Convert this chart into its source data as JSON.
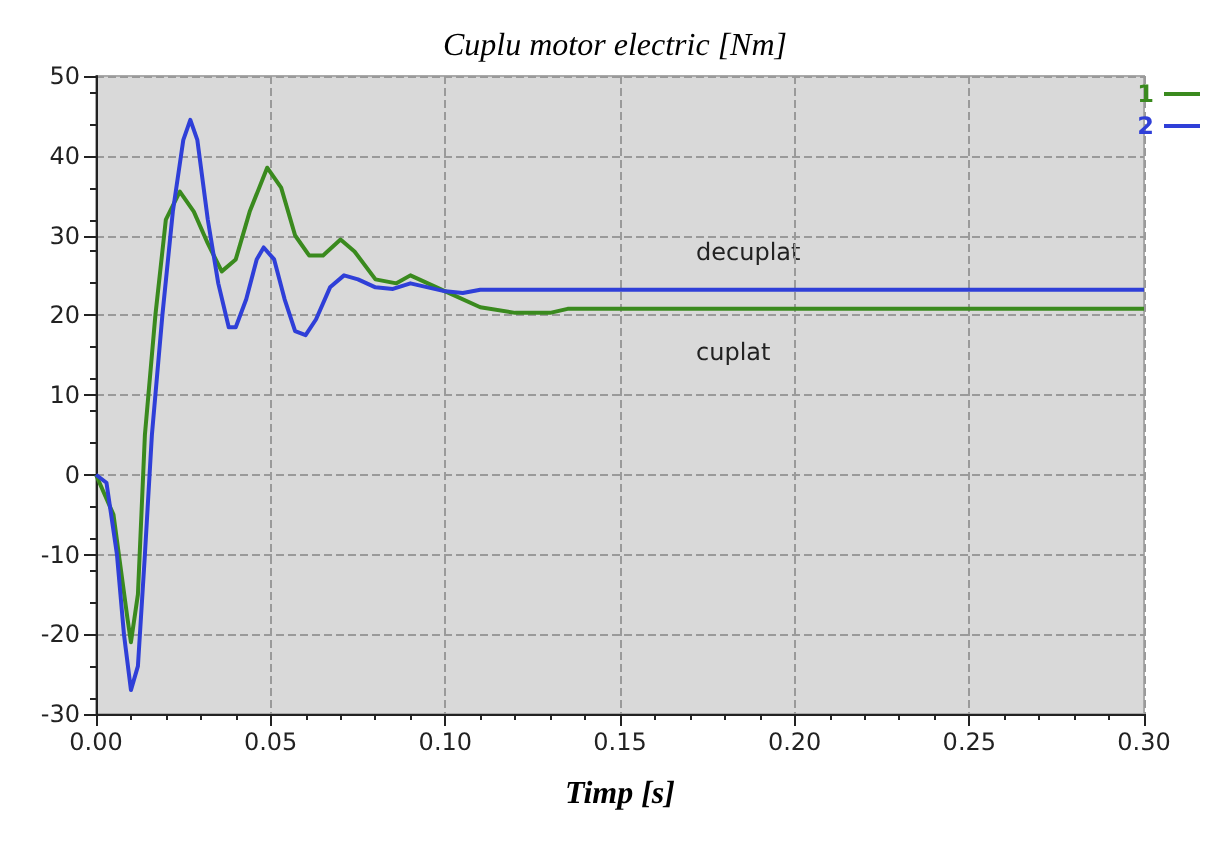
{
  "chart_data": {
    "type": "line",
    "title": "Cuplu motor electric [Nm]",
    "xlabel": "Timp [s]",
    "xlim": [
      0,
      0.3
    ],
    "xticks": [
      {
        "value": 0,
        "label": "0.00"
      },
      {
        "value": 0.05,
        "label": "0.05"
      },
      {
        "value": 0.1,
        "label": "0.10"
      },
      {
        "value": 0.15,
        "label": "0.15"
      },
      {
        "value": 0.2,
        "label": "0.20"
      },
      {
        "value": 0.25,
        "label": "0.25"
      },
      {
        "value": 0.3,
        "label": "0.30"
      }
    ],
    "ylim": [
      -30,
      50
    ],
    "yticks": [
      -30,
      -20,
      -10,
      0,
      10,
      20,
      30,
      40,
      50
    ],
    "grid": true,
    "legend": "top right",
    "line_style": "solid",
    "marker": "none",
    "series": [
      {
        "name": "1",
        "color": "#3a8a1e",
        "x": [
          0,
          0.005,
          0.009,
          0.01,
          0.012,
          0.014,
          0.017,
          0.02,
          0.024,
          0.028,
          0.032,
          0.036,
          0.04,
          0.044,
          0.049,
          0.053,
          0.057,
          0.061,
          0.065,
          0.07,
          0.074,
          0.08,
          0.086,
          0.09,
          0.095,
          0.1,
          0.11,
          0.12,
          0.13,
          0.135,
          0.3
        ],
        "values": [
          0,
          -5,
          -18,
          -21,
          -15,
          5,
          20,
          32,
          35.5,
          33,
          29,
          25.5,
          27,
          33,
          38.5,
          36,
          30,
          27.5,
          27.5,
          29.5,
          28,
          24.5,
          24,
          25,
          24,
          23,
          21,
          20.3,
          20.3,
          20.8,
          20.8
        ]
      },
      {
        "name": "2",
        "color": "#2f3fd8",
        "x": [
          0,
          0.003,
          0.006,
          0.008,
          0.01,
          0.012,
          0.014,
          0.016,
          0.019,
          0.022,
          0.025,
          0.027,
          0.029,
          0.032,
          0.035,
          0.038,
          0.04,
          0.043,
          0.046,
          0.048,
          0.051,
          0.054,
          0.057,
          0.06,
          0.063,
          0.067,
          0.071,
          0.075,
          0.08,
          0.085,
          0.09,
          0.095,
          0.1,
          0.105,
          0.11,
          0.3
        ],
        "values": [
          0,
          -1,
          -10,
          -20,
          -27,
          -24,
          -10,
          5,
          20,
          33,
          42,
          44.5,
          42,
          32,
          24,
          18.5,
          18.5,
          22,
          27,
          28.5,
          27,
          22,
          18,
          17.5,
          19.5,
          23.5,
          25,
          24.5,
          23.5,
          23.3,
          24,
          23.5,
          23,
          22.8,
          23.2,
          23.2
        ]
      }
    ],
    "annotations": [
      "decuplat",
      "cuplat"
    ]
  }
}
